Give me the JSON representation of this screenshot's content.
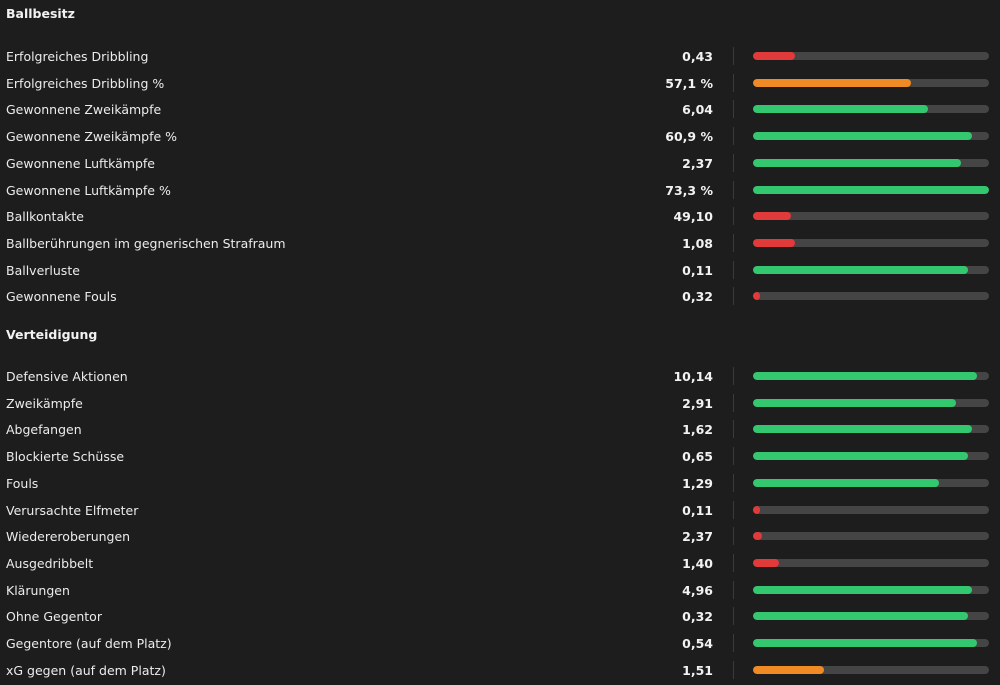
{
  "colors": {
    "good": "#33c86f",
    "mid": "#f08a24",
    "bad": "#e03a3a",
    "track": "#454545"
  },
  "sections": [
    {
      "title": "Ballbesitz",
      "rows": [
        {
          "label": "Erfolgreiches Dribbling",
          "value": "0,43",
          "percentile": 0.18,
          "rating": "bad"
        },
        {
          "label": "Erfolgreiches Dribbling %",
          "value": "57,1 %",
          "percentile": 0.67,
          "rating": "mid"
        },
        {
          "label": "Gewonnene Zweikämpfe",
          "value": "6,04",
          "percentile": 0.74,
          "rating": "good"
        },
        {
          "label": "Gewonnene Zweikämpfe %",
          "value": "60,9 %",
          "percentile": 0.93,
          "rating": "good"
        },
        {
          "label": "Gewonnene Luftkämpfe",
          "value": "2,37",
          "percentile": 0.88,
          "rating": "good"
        },
        {
          "label": "Gewonnene Luftkämpfe %",
          "value": "73,3 %",
          "percentile": 1.0,
          "rating": "good"
        },
        {
          "label": "Ballkontakte",
          "value": "49,10",
          "percentile": 0.16,
          "rating": "bad"
        },
        {
          "label": "Ballberührungen im gegnerischen Strafraum",
          "value": "1,08",
          "percentile": 0.18,
          "rating": "bad"
        },
        {
          "label": "Ballverluste",
          "value": "0,11",
          "percentile": 0.91,
          "rating": "good"
        },
        {
          "label": "Gewonnene Fouls",
          "value": "0,32",
          "percentile": 0.03,
          "rating": "bad"
        }
      ]
    },
    {
      "title": "Verteidigung",
      "rows": [
        {
          "label": "Defensive Aktionen",
          "value": "10,14",
          "percentile": 0.95,
          "rating": "good"
        },
        {
          "label": "Zweikämpfe",
          "value": "2,91",
          "percentile": 0.86,
          "rating": "good"
        },
        {
          "label": "Abgefangen",
          "value": "1,62",
          "percentile": 0.93,
          "rating": "good"
        },
        {
          "label": "Blockierte Schüsse",
          "value": "0,65",
          "percentile": 0.91,
          "rating": "good"
        },
        {
          "label": "Fouls",
          "value": "1,29",
          "percentile": 0.79,
          "rating": "good"
        },
        {
          "label": "Verursachte Elfmeter",
          "value": "0,11",
          "percentile": 0.03,
          "rating": "bad"
        },
        {
          "label": "Wiedereroberungen",
          "value": "2,37",
          "percentile": 0.04,
          "rating": "bad"
        },
        {
          "label": "Ausgedribbelt",
          "value": "1,40",
          "percentile": 0.11,
          "rating": "bad"
        },
        {
          "label": "Klärungen",
          "value": "4,96",
          "percentile": 0.93,
          "rating": "good"
        },
        {
          "label": "Ohne Gegentor",
          "value": "0,32",
          "percentile": 0.91,
          "rating": "good"
        },
        {
          "label": "Gegentore (auf dem Platz)",
          "value": "0,54",
          "percentile": 0.95,
          "rating": "good"
        },
        {
          "label": "xG gegen (auf dem Platz)",
          "value": "1,51",
          "percentile": 0.3,
          "rating": "mid"
        }
      ]
    }
  ]
}
